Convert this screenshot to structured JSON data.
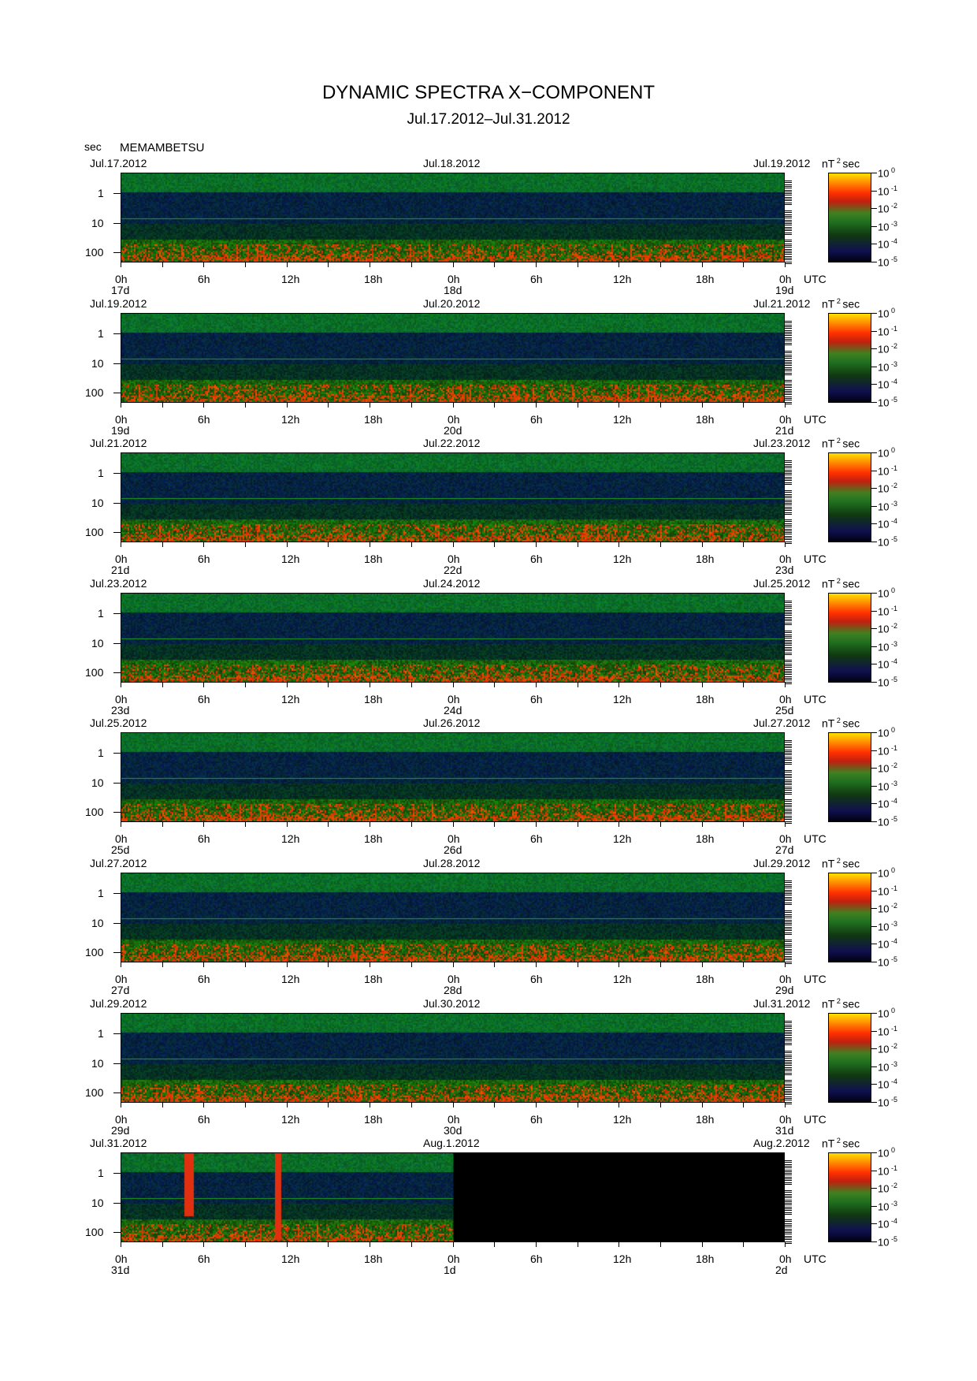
{
  "title": "DYNAMIC SPECTRA X−COMPONENT",
  "subtitle": "Jul.17.2012–Jul.31.2012",
  "y_unit": "sec",
  "station": "MEMAMBETSU",
  "colorbar_unit": "nT",
  "colorbar_unit_sup": "2",
  "colorbar_unit_tail": "sec",
  "utc_label": "UTC",
  "chart_data": {
    "type": "heatmap",
    "title": "DYNAMIC SPECTRA X−COMPONENT",
    "subtitle": "Jul.17.2012–Jul.31.2012",
    "ylabel": "sec",
    "y_ticks": [
      "1",
      "10",
      "100"
    ],
    "y_scale": "log",
    "x_ticks": [
      "0h",
      "6h",
      "12h",
      "18h",
      "0h",
      "6h",
      "12h",
      "18h",
      "0h"
    ],
    "colorbar": {
      "label": "nT2sec",
      "scale": "log",
      "ticks": [
        "10^0",
        "10^-1",
        "10^-2",
        "10^-3",
        "10^-4",
        "10^-5"
      ],
      "colors": [
        "#ffe000",
        "#ff3000",
        "#c02010",
        "#207020",
        "#101050",
        "#000010"
      ]
    },
    "panels": [
      {
        "start_date": "Jul.17.2012",
        "mid_date": "Jul.18.2012",
        "end_date": "Jul.19.2012",
        "day_labels": [
          "17d",
          "18d",
          "19d"
        ],
        "data_available": true
      },
      {
        "start_date": "Jul.19.2012",
        "mid_date": "Jul.20.2012",
        "end_date": "Jul.21.2012",
        "day_labels": [
          "19d",
          "20d",
          "21d"
        ],
        "data_available": true
      },
      {
        "start_date": "Jul.21.2012",
        "mid_date": "Jul.22.2012",
        "end_date": "Jul.23.2012",
        "day_labels": [
          "21d",
          "22d",
          "23d"
        ],
        "data_available": true
      },
      {
        "start_date": "Jul.23.2012",
        "mid_date": "Jul.24.2012",
        "end_date": "Jul.25.2012",
        "day_labels": [
          "23d",
          "24d",
          "25d"
        ],
        "data_available": true
      },
      {
        "start_date": "Jul.25.2012",
        "mid_date": "Jul.26.2012",
        "end_date": "Jul.27.2012",
        "day_labels": [
          "25d",
          "26d",
          "27d"
        ],
        "data_available": true
      },
      {
        "start_date": "Jul.27.2012",
        "mid_date": "Jul.28.2012",
        "end_date": "Jul.29.2012",
        "day_labels": [
          "27d",
          "28d",
          "29d"
        ],
        "data_available": true
      },
      {
        "start_date": "Jul.29.2012",
        "mid_date": "Jul.30.2012",
        "end_date": "Jul.31.2012",
        "day_labels": [
          "29d",
          "30d",
          "31d"
        ],
        "data_available": true
      },
      {
        "start_date": "Jul.31.2012",
        "mid_date": "Aug.1.2012",
        "end_date": "Aug.2.2012",
        "day_labels": [
          "31d",
          "1d",
          "2d"
        ],
        "data_available": "first day only"
      }
    ]
  }
}
